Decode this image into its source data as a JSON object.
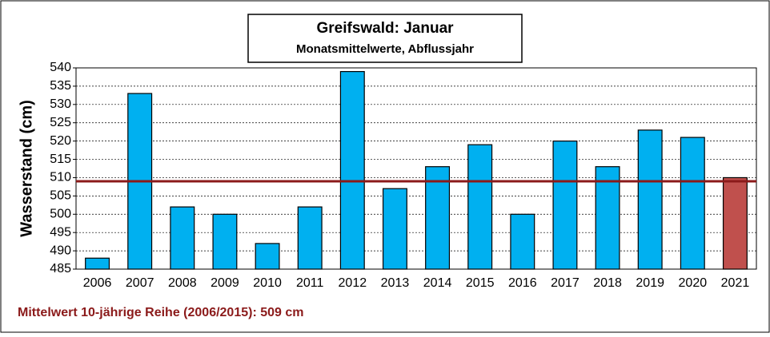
{
  "chart_data": {
    "type": "bar",
    "title": "Greifswald: Januar",
    "subtitle": "Monatsmittelwerte, Abflussjahr",
    "y_label": "Wasserstand (cm)",
    "annotation": "Mittelwert 10-jährige Reihe (2006/2015): 509 cm",
    "categories": [
      "2006",
      "2007",
      "2008",
      "2009",
      "2010",
      "2011",
      "2012",
      "2013",
      "2014",
      "2015",
      "2016",
      "2017",
      "2018",
      "2019",
      "2020",
      "2021"
    ],
    "values": [
      488,
      533,
      502,
      500,
      492,
      502,
      539,
      507,
      513,
      519,
      500,
      520,
      513,
      523,
      521,
      510
    ],
    "colors": [
      "#00b0f0",
      "#00b0f0",
      "#00b0f0",
      "#00b0f0",
      "#00b0f0",
      "#00b0f0",
      "#00b0f0",
      "#00b0f0",
      "#00b0f0",
      "#00b0f0",
      "#00b0f0",
      "#00b0f0",
      "#00b0f0",
      "#00b0f0",
      "#00b0f0",
      "#c0504d"
    ],
    "mean_line": {
      "value": 509,
      "color": "#8b1a1a"
    },
    "ylim": [
      485,
      540
    ],
    "yticks": [
      485,
      490,
      495,
      500,
      505,
      510,
      515,
      520,
      525,
      530,
      535,
      540
    ],
    "grid": true
  }
}
